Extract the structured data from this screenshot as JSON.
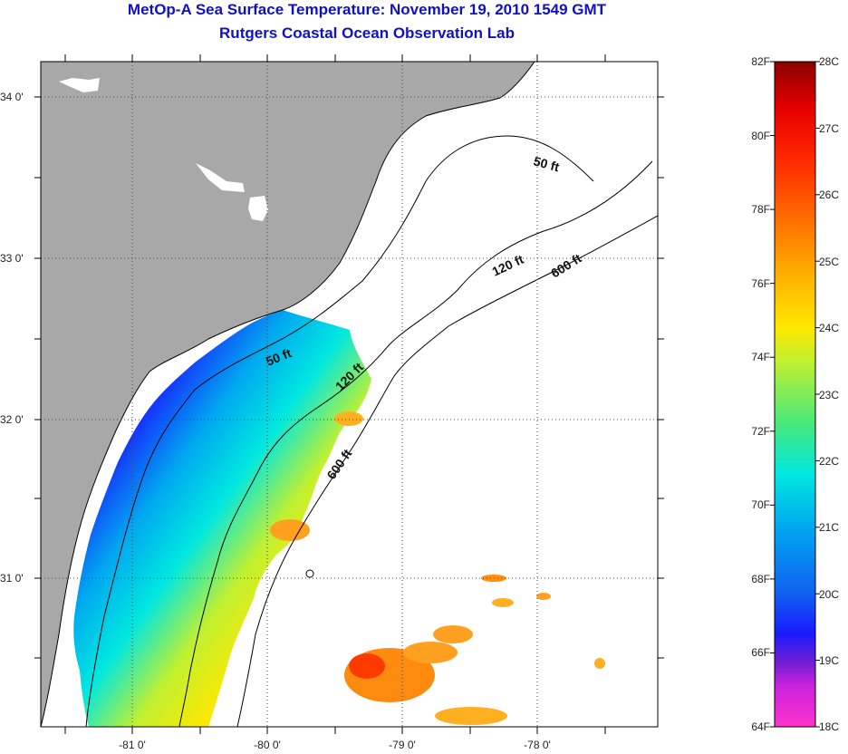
{
  "titles": {
    "line1": "MetOp-A Sea Surface Temperature:  November 19, 2010 1549 GMT",
    "line2": "Rutgers Coastal Ocean Observation Lab"
  },
  "map": {
    "lat_labels": [
      "34 0'",
      "33 0'",
      "32 0'",
      "31 0'"
    ],
    "lon_labels": [
      "-81 0'",
      "-80 0'",
      "-79 0'",
      "-78 0'"
    ],
    "contour_labels": [
      "50 ft",
      "120 ft",
      "600 ft",
      "50 ft",
      "120 ft",
      "600 ft"
    ],
    "colors": {
      "land": "#a8a8a8",
      "frame": "#000000",
      "title": "#1010c8"
    }
  },
  "colorbar": {
    "fahrenheit_labels": [
      "82F",
      "80F",
      "78F",
      "76F",
      "74F",
      "72F",
      "70F",
      "68F",
      "66F",
      "64F"
    ],
    "celsius_labels": [
      "28C",
      "27C",
      "26C",
      "25C",
      "24C",
      "23C",
      "22C",
      "21C",
      "20C",
      "19C",
      "18C"
    ],
    "range_f": [
      64,
      82
    ],
    "range_c": [
      18,
      28
    ],
    "colors_bottom_to_top": [
      "#ff33cc",
      "#cc22dd",
      "#6a1ed6",
      "#1a1aff",
      "#1060f0",
      "#00a8f0",
      "#00e8e0",
      "#40e880",
      "#c0f030",
      "#ffe800",
      "#ffb000",
      "#ff7000",
      "#ff2a00",
      "#e60000",
      "#8a0000"
    ]
  }
}
